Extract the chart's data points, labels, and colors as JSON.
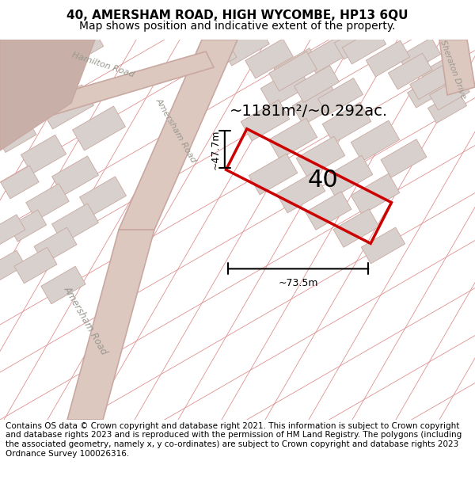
{
  "title_line1": "40, AMERSHAM ROAD, HIGH WYCOMBE, HP13 6QU",
  "title_line2": "Map shows position and indicative extent of the property.",
  "area_text": "~1181m²/~0.292ac.",
  "width_label": "~73.5m",
  "height_label": "~47.7m",
  "number_label": "40",
  "footer_text": "Contains OS data © Crown copyright and database right 2021. This information is subject to Crown copyright and database rights 2023 and is reproduced with the permission of HM Land Registry. The polygons (including the associated geometry, namely x, y co-ordinates) are subject to Crown copyright and database rights 2023 Ordnance Survey 100026316.",
  "bg_color": "#f5f0ee",
  "map_bg_color": "#f0ebe8",
  "road_color": "#ddc8c0",
  "road_outline_color": "#c8a8a0",
  "highlight_color": "#cc0000",
  "building_color": "#d8d0cc",
  "cadastral_color": "#e09090",
  "title_fontsize": 11,
  "subtitle_fontsize": 10,
  "footer_fontsize": 7.5,
  "label_color": "#999990",
  "corner_color": "#c8b0a8"
}
